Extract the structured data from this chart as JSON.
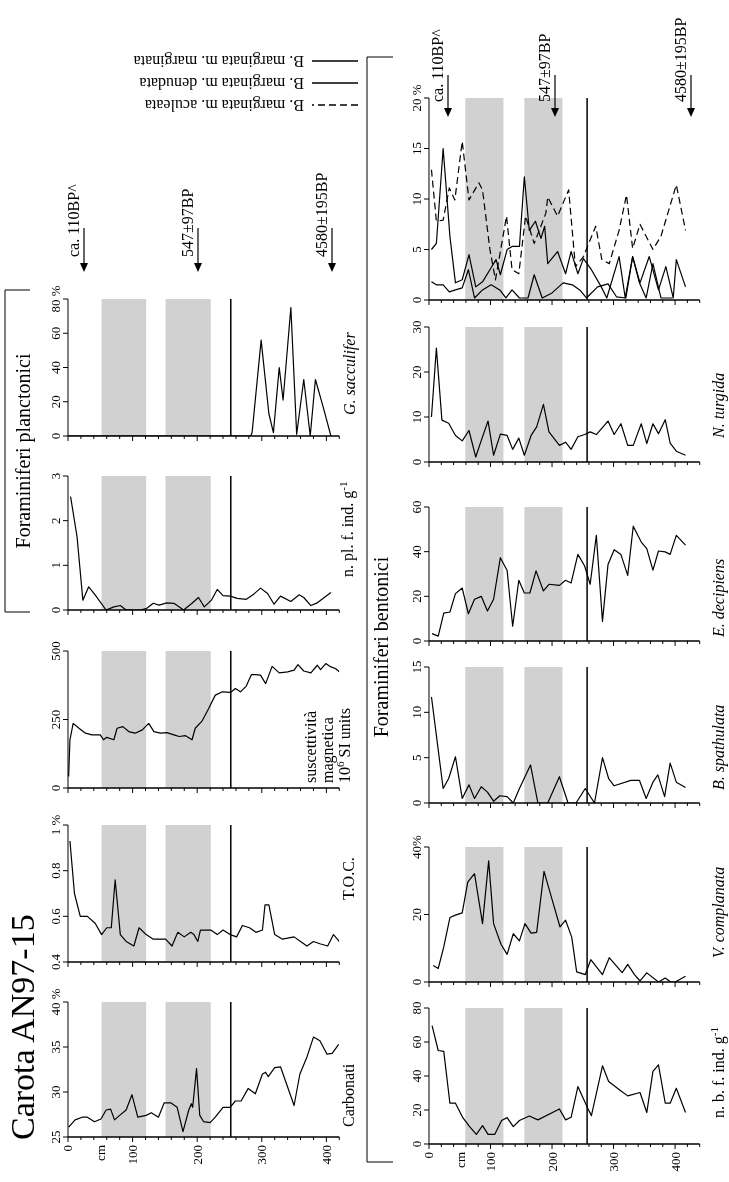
{
  "chart_data": [
    {
      "type": "line",
      "title": "Carota AN97-15",
      "ylabel": "Carbonati",
      "annotations": [
        "cm"
      ],
      "color": "#000000",
      "xlim": [
        0,
        420
      ],
      "xticks": [
        0,
        {
          "value": 20,
          "label": null
        },
        {
          "value": 40,
          "label": null
        },
        {
          "value": 60,
          "label": null
        },
        {
          "value": 80,
          "label": null
        },
        100,
        {
          "value": 120,
          "label": null
        },
        {
          "value": 140,
          "label": null
        },
        {
          "value": 160,
          "label": null
        },
        {
          "value": 180,
          "label": null
        },
        200,
        {
          "value": 220,
          "label": null
        },
        {
          "value": 240,
          "label": null
        },
        {
          "value": 260,
          "label": null
        },
        {
          "value": 280,
          "label": null
        },
        300,
        {
          "value": 320,
          "label": null
        },
        {
          "value": 340,
          "label": null
        },
        {
          "value": 360,
          "label": null
        },
        {
          "value": 380,
          "label": null
        },
        400,
        {
          "value": 420,
          "label": null
        }
      ],
      "ylim": [
        25,
        40
      ],
      "yticks": [
        25,
        30,
        35,
        {
          "value": 40,
          "label": "40 %"
        }
      ],
      "x": [
        1,
        11,
        22,
        30,
        41,
        51,
        59,
        66,
        72,
        80,
        90,
        99,
        108,
        121,
        129,
        140,
        149,
        159,
        169,
        178,
        187,
        191,
        193,
        199,
        204,
        210,
        220,
        228,
        240,
        251,
        259,
        268,
        279,
        290,
        301,
        306,
        310,
        320,
        329,
        350,
        359,
        370,
        380,
        390,
        401,
        409,
        419
      ],
      "values": [
        26.1,
        26.9,
        27.2,
        27.2,
        26.7,
        27.0,
        28.0,
        28.1,
        26.9,
        27.4,
        28.0,
        29.7,
        27.2,
        27.4,
        27.7,
        27.2,
        28.8,
        28.8,
        28.3,
        25.6,
        28.0,
        28.7,
        28.3,
        32.6,
        27.4,
        26.7,
        26.6,
        27.2,
        28.3,
        28.3,
        29.0,
        29.0,
        30.4,
        29.8,
        32.0,
        32.2,
        31.7,
        32.7,
        32.8,
        28.5,
        32.0,
        33.9,
        36.1,
        35.7,
        34.2,
        34.3,
        35.3
      ],
      "bands": [
        {
          "axis": "x",
          "from": 52,
          "to": 121,
          "color": "#d1d1d1"
        },
        {
          "axis": "x",
          "from": 151,
          "to": 221,
          "color": "#d1d1d1"
        }
      ],
      "ref_lines": [
        {
          "axis": "x",
          "value": 252,
          "color": "#000000"
        }
      ]
    },
    {
      "type": "line",
      "ylabel": "T.O.C.",
      "color": "#000000",
      "xlim": [
        0,
        420
      ],
      "xticks": [
        0,
        {
          "value": 20,
          "label": null
        },
        {
          "value": 40,
          "label": null
        },
        {
          "value": 60,
          "label": null
        },
        {
          "value": 80,
          "label": null
        },
        100,
        {
          "value": 120,
          "label": null
        },
        {
          "value": 140,
          "label": null
        },
        {
          "value": 160,
          "label": null
        },
        {
          "value": 180,
          "label": null
        },
        200,
        {
          "value": 220,
          "label": null
        },
        {
          "value": 240,
          "label": null
        },
        {
          "value": 260,
          "label": null
        },
        {
          "value": 280,
          "label": null
        },
        300,
        {
          "value": 320,
          "label": null
        },
        {
          "value": 340,
          "label": null
        },
        {
          "value": 360,
          "label": null
        },
        {
          "value": 380,
          "label": null
        },
        400,
        {
          "value": 420,
          "label": null
        }
      ],
      "ylim": [
        0.4,
        1
      ],
      "yticks": [
        0.4,
        0.6,
        0.8,
        {
          "value": 1,
          "label": "1 %"
        }
      ],
      "tick_labels": "y",
      "x": [
        3,
        10,
        19,
        30,
        42,
        52,
        60,
        67,
        73,
        81,
        90,
        102,
        110,
        121,
        132,
        142,
        151,
        161,
        170,
        180,
        190,
        195,
        201,
        205,
        213,
        221,
        231,
        240,
        251,
        261,
        270,
        281,
        291,
        301,
        305,
        311,
        320,
        332,
        350,
        360,
        370,
        380,
        390,
        402,
        411,
        420
      ],
      "values": [
        0.93,
        0.7,
        0.6,
        0.6,
        0.57,
        0.52,
        0.55,
        0.55,
        0.76,
        0.52,
        0.49,
        0.47,
        0.55,
        0.52,
        0.5,
        0.5,
        0.5,
        0.47,
        0.53,
        0.51,
        0.53,
        0.52,
        0.49,
        0.54,
        0.54,
        0.54,
        0.52,
        0.54,
        0.52,
        0.51,
        0.56,
        0.55,
        0.53,
        0.54,
        0.65,
        0.65,
        0.52,
        0.5,
        0.51,
        0.49,
        0.47,
        0.49,
        0.48,
        0.47,
        0.52,
        0.49
      ],
      "bands": [
        {
          "axis": "x",
          "from": 52,
          "to": 121,
          "color": "#d1d1d1"
        },
        {
          "axis": "x",
          "from": 151,
          "to": 221,
          "color": "#d1d1d1"
        }
      ],
      "ref_lines": [
        {
          "axis": "x",
          "value": 252,
          "color": "#000000"
        }
      ]
    },
    {
      "type": "line",
      "ylabel": "suscettività\nmagnetica\n10$^{6}$ SI units",
      "color": "#000000",
      "xlim": [
        0,
        420
      ],
      "xticks": [
        0,
        {
          "value": 20,
          "label": null
        },
        {
          "value": 40,
          "label": null
        },
        {
          "value": 60,
          "label": null
        },
        {
          "value": 80,
          "label": null
        },
        100,
        {
          "value": 120,
          "label": null
        },
        {
          "value": 140,
          "label": null
        },
        {
          "value": 160,
          "label": null
        },
        {
          "value": 180,
          "label": null
        },
        200,
        {
          "value": 220,
          "label": null
        },
        {
          "value": 240,
          "label": null
        },
        {
          "value": 260,
          "label": null
        },
        {
          "value": 280,
          "label": null
        },
        300,
        {
          "value": 320,
          "label": null
        },
        {
          "value": 340,
          "label": null
        },
        {
          "value": 360,
          "label": null
        },
        {
          "value": 380,
          "label": null
        },
        400,
        {
          "value": 420,
          "label": null
        }
      ],
      "ylim": [
        0,
        500
      ],
      "yticks": [
        0,
        250,
        500
      ],
      "tick_labels": "y",
      "x": [
        1,
        3,
        8,
        17,
        27,
        37,
        50,
        55,
        60,
        71,
        76,
        85,
        94,
        104,
        115,
        125,
        133,
        143,
        153,
        164,
        172,
        182,
        192,
        197,
        208,
        218,
        228,
        239,
        252,
        259,
        267,
        276,
        284,
        290,
        298,
        306,
        316,
        327,
        340,
        350,
        356,
        365,
        376,
        386,
        391,
        399,
        407,
        414,
        420
      ],
      "values": [
        42,
        176,
        236,
        218,
        200,
        194,
        194,
        176,
        185,
        176,
        218,
        224,
        206,
        200,
        212,
        236,
        206,
        200,
        202,
        194,
        188,
        191,
        176,
        218,
        246,
        291,
        339,
        351,
        349,
        363,
        351,
        372,
        414,
        414,
        412,
        381,
        444,
        420,
        424,
        430,
        450,
        427,
        420,
        448,
        432,
        454,
        442,
        436,
        424
      ],
      "bands": [
        {
          "axis": "x",
          "from": 52,
          "to": 121,
          "color": "#d1d1d1"
        },
        {
          "axis": "x",
          "from": 151,
          "to": 221,
          "color": "#d1d1d1"
        }
      ],
      "ref_lines": [
        {
          "axis": "x",
          "value": 252,
          "color": "#000000"
        }
      ]
    },
    {
      "type": "line",
      "ylabel": "n. pl. f. ind. g$^{-1}$",
      "annotations": [
        "Foraminiferi planctonici"
      ],
      "color": "#000000",
      "xlim": [
        0,
        420
      ],
      "xticks": [
        0,
        {
          "value": 20,
          "label": null
        },
        {
          "value": 40,
          "label": null
        },
        {
          "value": 60,
          "label": null
        },
        {
          "value": 80,
          "label": null
        },
        100,
        {
          "value": 120,
          "label": null
        },
        {
          "value": 140,
          "label": null
        },
        {
          "value": 160,
          "label": null
        },
        {
          "value": 180,
          "label": null
        },
        200,
        {
          "value": 220,
          "label": null
        },
        {
          "value": 240,
          "label": null
        },
        {
          "value": 260,
          "label": null
        },
        {
          "value": 280,
          "label": null
        },
        300,
        {
          "value": 320,
          "label": null
        },
        {
          "value": 340,
          "label": null
        },
        {
          "value": 360,
          "label": null
        },
        {
          "value": 380,
          "label": null
        },
        400,
        {
          "value": 420,
          "label": null
        }
      ],
      "ylim": [
        0,
        3
      ],
      "yticks": [
        0,
        1,
        2,
        3
      ],
      "tick_labels": "y",
      "x": [
        4,
        14,
        23,
        32,
        42,
        59,
        71,
        81,
        89,
        99,
        112,
        122,
        132,
        141,
        153,
        164,
        179,
        192,
        202,
        211,
        222,
        231,
        240,
        251,
        262,
        276,
        288,
        298,
        309,
        319,
        329,
        345,
        358,
        365,
        376,
        386,
        407
      ],
      "values": [
        2.54,
        1.64,
        0.22,
        0.52,
        0.34,
        0,
        0.07,
        0.1,
        0.01,
        0,
        0,
        0.04,
        0.15,
        0.11,
        0.16,
        0.15,
        0,
        0.15,
        0.28,
        0.07,
        0.22,
        0.46,
        0.32,
        0.31,
        0.26,
        0.24,
        0.36,
        0.49,
        0.37,
        0.13,
        0.31,
        0.19,
        0.34,
        0.28,
        0.1,
        0.16,
        0.39
      ],
      "bands": [
        {
          "axis": "x",
          "from": 52,
          "to": 121,
          "color": "#d1d1d1"
        },
        {
          "axis": "x",
          "from": 151,
          "to": 221,
          "color": "#d1d1d1"
        }
      ],
      "ref_lines": [
        {
          "axis": "x",
          "value": 252,
          "color": "#000000"
        }
      ]
    },
    {
      "type": "line",
      "ylabel": "G. sacculifer",
      "annotations": [
        "ca. 110BP^",
        "547±97BP",
        "4580±195BP"
      ],
      "color": "#000000",
      "xlim": [
        0,
        420
      ],
      "xticks": [
        0,
        {
          "value": 20,
          "label": null
        },
        {
          "value": 40,
          "label": null
        },
        {
          "value": 60,
          "label": null
        },
        {
          "value": 80,
          "label": null
        },
        100,
        {
          "value": 120,
          "label": null
        },
        {
          "value": 140,
          "label": null
        },
        {
          "value": 160,
          "label": null
        },
        {
          "value": 180,
          "label": null
        },
        200,
        {
          "value": 220,
          "label": null
        },
        {
          "value": 240,
          "label": null
        },
        {
          "value": 260,
          "label": null
        },
        {
          "value": 280,
          "label": null
        },
        300,
        {
          "value": 320,
          "label": null
        },
        {
          "value": 340,
          "label": null
        },
        {
          "value": 360,
          "label": null
        },
        {
          "value": 380,
          "label": null
        },
        400,
        {
          "value": 420,
          "label": null
        }
      ],
      "ylim": [
        0,
        80
      ],
      "yticks": [
        0,
        20,
        40,
        60,
        {
          "value": 80,
          "label": "80 %"
        }
      ],
      "tick_labels": "y",
      "x": [
        0,
        283,
        285,
        299,
        311,
        318,
        327,
        333,
        345,
        354,
        365,
        375,
        383,
        395,
        407
      ],
      "values": [
        0,
        0,
        2,
        56,
        13,
        2,
        40,
        21,
        75,
        1,
        33,
        0,
        33,
        17,
        0
      ],
      "bands": [
        {
          "axis": "x",
          "from": 52,
          "to": 121,
          "color": "#d1d1d1"
        },
        {
          "axis": "x",
          "from": 151,
          "to": 221,
          "color": "#d1d1d1"
        }
      ],
      "ref_lines": [
        {
          "axis": "x",
          "value": 252,
          "color": "#000000"
        }
      ]
    },
    {
      "type": "line",
      "ylabel": "n. b. f. ind. g$^{-1}$",
      "annotations": [
        "cm"
      ],
      "color": "#000000",
      "xlim": [
        0,
        440
      ],
      "xticks": [
        0,
        {
          "value": 20,
          "label": null
        },
        {
          "value": 40,
          "label": null
        },
        {
          "value": 60,
          "label": null
        },
        {
          "value": 80,
          "label": null
        },
        100,
        {
          "value": 120,
          "label": null
        },
        {
          "value": 140,
          "label": null
        },
        {
          "value": 160,
          "label": null
        },
        {
          "value": 180,
          "label": null
        },
        200,
        {
          "value": 220,
          "label": null
        },
        {
          "value": 240,
          "label": null
        },
        {
          "value": 260,
          "label": null
        },
        {
          "value": 280,
          "label": null
        },
        300,
        {
          "value": 320,
          "label": null
        },
        {
          "value": 340,
          "label": null
        },
        {
          "value": 360,
          "label": null
        },
        {
          "value": 380,
          "label": null
        },
        400,
        {
          "value": 420,
          "label": null
        },
        {
          "value": 440,
          "label": null
        }
      ],
      "ylim": [
        0,
        80
      ],
      "yticks": [
        0,
        20,
        40,
        60,
        80
      ],
      "x": [
        5,
        15,
        24,
        34,
        43,
        55,
        66,
        77,
        87,
        96,
        107,
        118,
        127,
        137,
        147,
        163,
        177,
        212,
        222,
        231,
        242,
        258,
        264,
        282,
        292,
        310,
        323,
        343,
        354,
        364,
        373,
        384,
        392,
        402,
        417
      ],
      "values": [
        69.6,
        55.0,
        54.5,
        24,
        24,
        15.5,
        10.2,
        5.7,
        10.8,
        5.7,
        5.7,
        13.8,
        15.5,
        10.2,
        13.8,
        16.5,
        14.2,
        20.6,
        14.2,
        15.7,
        33.8,
        21,
        16.7,
        46,
        36.8,
        31.8,
        28.3,
        30.3,
        18.5,
        42.7,
        46.6,
        24,
        24,
        32.8,
        18.5
      ],
      "bands": [
        {
          "axis": "x",
          "from": 59,
          "to": 121,
          "color": "#d1d1d1"
        },
        {
          "axis": "x",
          "from": 155,
          "to": 217,
          "color": "#d1d1d1"
        }
      ],
      "ref_lines": [
        {
          "axis": "x",
          "value": 257,
          "color": "#000000"
        }
      ]
    },
    {
      "type": "line",
      "ylabel": "V. complanata",
      "color": "#000000",
      "xlim": [
        0,
        440
      ],
      "xticks": [
        0,
        {
          "value": 20,
          "label": null
        },
        {
          "value": 40,
          "label": null
        },
        {
          "value": 60,
          "label": null
        },
        {
          "value": 80,
          "label": null
        },
        100,
        {
          "value": 120,
          "label": null
        },
        {
          "value": 140,
          "label": null
        },
        {
          "value": 160,
          "label": null
        },
        {
          "value": 180,
          "label": null
        },
        200,
        {
          "value": 220,
          "label": null
        },
        {
          "value": 240,
          "label": null
        },
        {
          "value": 260,
          "label": null
        },
        {
          "value": 280,
          "label": null
        },
        300,
        {
          "value": 320,
          "label": null
        },
        {
          "value": 340,
          "label": null
        },
        {
          "value": 360,
          "label": null
        },
        {
          "value": 380,
          "label": null
        },
        400,
        {
          "value": 420,
          "label": null
        },
        {
          "value": 440,
          "label": null
        }
      ],
      "ylim": [
        0,
        40
      ],
      "yticks": [
        0,
        20,
        {
          "value": 40,
          "label": "40%"
        }
      ],
      "tick_labels": "y",
      "x": [
        7,
        15,
        24,
        34,
        43,
        54,
        63,
        74,
        87,
        97,
        105,
        117,
        127,
        137,
        147,
        156,
        166,
        175,
        187,
        200,
        213,
        222,
        232,
        240,
        254,
        263,
        282,
        293,
        314,
        323,
        334,
        343,
        354,
        373,
        384,
        393,
        400,
        417
      ],
      "values": [
        4.9,
        4.0,
        10.4,
        19.1,
        19.8,
        20.5,
        29.6,
        32.1,
        17.3,
        35.9,
        17.3,
        11.2,
        8.2,
        14.3,
        12.2,
        17.3,
        14.5,
        14.7,
        32.8,
        24.5,
        16.3,
        18.3,
        13.3,
        3.0,
        2.2,
        6.6,
        2.2,
        7.2,
        2.8,
        5.2,
        2.2,
        0.3,
        2.7,
        0,
        1.2,
        0,
        0,
        1.7
      ],
      "bands": [
        {
          "axis": "x",
          "from": 59,
          "to": 121,
          "color": "#d1d1d1"
        },
        {
          "axis": "x",
          "from": 155,
          "to": 217,
          "color": "#d1d1d1"
        }
      ],
      "ref_lines": [
        {
          "axis": "x",
          "value": 257,
          "color": "#000000"
        }
      ]
    },
    {
      "type": "line",
      "ylabel": "B. spathulata",
      "annotations": [
        "Foraminiferi bentonici"
      ],
      "color": "#000000",
      "xlim": [
        0,
        440
      ],
      "xticks": [
        0,
        {
          "value": 20,
          "label": null
        },
        {
          "value": 40,
          "label": null
        },
        {
          "value": 60,
          "label": null
        },
        {
          "value": 80,
          "label": null
        },
        100,
        {
          "value": 120,
          "label": null
        },
        {
          "value": 140,
          "label": null
        },
        {
          "value": 160,
          "label": null
        },
        {
          "value": 180,
          "label": null
        },
        200,
        {
          "value": 220,
          "label": null
        },
        {
          "value": 240,
          "label": null
        },
        {
          "value": 260,
          "label": null
        },
        {
          "value": 280,
          "label": null
        },
        300,
        {
          "value": 320,
          "label": null
        },
        {
          "value": 340,
          "label": null
        },
        {
          "value": 360,
          "label": null
        },
        {
          "value": 380,
          "label": null
        },
        400,
        {
          "value": 420,
          "label": null
        },
        {
          "value": 440,
          "label": null
        }
      ],
      "ylim": [
        0,
        15
      ],
      "yticks": [
        0,
        5,
        10,
        15
      ],
      "tick_labels": "y",
      "x": [
        4,
        23,
        32,
        43,
        54,
        65,
        74,
        85,
        95,
        105,
        115,
        127,
        137,
        147,
        165,
        177,
        193,
        212,
        226,
        239,
        254,
        269,
        282,
        292,
        301,
        328,
        342,
        353,
        364,
        372,
        383,
        392,
        402,
        417
      ],
      "values": [
        11.7,
        1.6,
        2.7,
        5.1,
        0.5,
        2.0,
        0.5,
        1.8,
        1.2,
        0.2,
        0.8,
        0.7,
        0,
        1.6,
        4.2,
        0,
        0,
        2.9,
        0,
        0,
        1.6,
        0,
        5.0,
        2.7,
        1.9,
        2.5,
        2.5,
        0.5,
        2.3,
        3.1,
        0.7,
        4.4,
        2.3,
        1.7
      ],
      "bands": [
        {
          "axis": "x",
          "from": 59,
          "to": 121,
          "color": "#d1d1d1"
        },
        {
          "axis": "x",
          "from": 155,
          "to": 217,
          "color": "#d1d1d1"
        }
      ],
      "ref_lines": [
        {
          "axis": "x",
          "value": 257,
          "color": "#000000"
        }
      ]
    },
    {
      "type": "line",
      "ylabel": "E. decipiens",
      "color": "#000000",
      "xlim": [
        0,
        440
      ],
      "xticks": [
        0,
        {
          "value": 20,
          "label": null
        },
        {
          "value": 40,
          "label": null
        },
        {
          "value": 60,
          "label": null
        },
        {
          "value": 80,
          "label": null
        },
        100,
        {
          "value": 120,
          "label": null
        },
        {
          "value": 140,
          "label": null
        },
        {
          "value": 160,
          "label": null
        },
        {
          "value": 180,
          "label": null
        },
        200,
        {
          "value": 220,
          "label": null
        },
        {
          "value": 240,
          "label": null
        },
        {
          "value": 260,
          "label": null
        },
        {
          "value": 280,
          "label": null
        },
        300,
        {
          "value": 320,
          "label": null
        },
        {
          "value": 340,
          "label": null
        },
        {
          "value": 360,
          "label": null
        },
        {
          "value": 380,
          "label": null
        },
        400,
        {
          "value": 420,
          "label": null
        },
        {
          "value": 440,
          "label": null
        }
      ],
      "ylim": [
        0,
        60
      ],
      "yticks": [
        0,
        20,
        40,
        60
      ],
      "tick_labels": "y",
      "x": [
        5,
        15,
        24,
        34,
        43,
        54,
        64,
        74,
        85,
        95,
        105,
        116,
        127,
        136,
        146,
        155,
        164,
        174,
        186,
        195,
        212,
        222,
        231,
        242,
        253,
        262,
        272,
        282,
        291,
        301,
        312,
        323,
        332,
        345,
        354,
        364,
        373,
        384,
        392,
        402,
        417
      ],
      "values": [
        3.3,
        2.2,
        12.5,
        13.0,
        21.2,
        23.7,
        12.2,
        18.7,
        20.0,
        13.4,
        18.7,
        37.3,
        31.6,
        6.6,
        27.2,
        21.5,
        21.5,
        31.4,
        22.4,
        25.4,
        24.9,
        27.2,
        26.0,
        38.8,
        33.6,
        25.4,
        47.3,
        8.8,
        34.3,
        40.9,
        38.7,
        29.4,
        51.4,
        44.3,
        41.4,
        31.7,
        40.3,
        39.9,
        38.8,
        47.3,
        42.9
      ],
      "bands": [
        {
          "axis": "x",
          "from": 59,
          "to": 121,
          "color": "#d1d1d1"
        },
        {
          "axis": "x",
          "from": 155,
          "to": 217,
          "color": "#d1d1d1"
        }
      ],
      "ref_lines": [
        {
          "axis": "x",
          "value": 257,
          "color": "#000000"
        }
      ]
    },
    {
      "type": "line",
      "ylabel": "N. turgida",
      "color": "#000000",
      "xlim": [
        0,
        440
      ],
      "xticks": [
        0,
        {
          "value": 20,
          "label": null
        },
        {
          "value": 40,
          "label": null
        },
        {
          "value": 60,
          "label": null
        },
        {
          "value": 80,
          "label": null
        },
        100,
        {
          "value": 120,
          "label": null
        },
        {
          "value": 140,
          "label": null
        },
        {
          "value": 160,
          "label": null
        },
        {
          "value": 180,
          "label": null
        },
        200,
        {
          "value": 220,
          "label": null
        },
        {
          "value": 240,
          "label": null
        },
        {
          "value": 260,
          "label": null
        },
        {
          "value": 280,
          "label": null
        },
        300,
        {
          "value": 320,
          "label": null
        },
        {
          "value": 340,
          "label": null
        },
        {
          "value": 360,
          "label": null
        },
        {
          "value": 380,
          "label": null
        },
        400,
        {
          "value": 420,
          "label": null
        },
        {
          "value": 440,
          "label": null
        }
      ],
      "ylim": [
        0,
        30
      ],
      "yticks": [
        0,
        10,
        20,
        30
      ],
      "tick_labels": "y",
      "x": [
        4,
        12,
        21,
        32,
        43,
        54,
        65,
        76,
        85,
        96,
        105,
        116,
        127,
        136,
        146,
        155,
        166,
        175,
        186,
        195,
        212,
        222,
        231,
        242,
        253,
        262,
        272,
        291,
        301,
        312,
        323,
        332,
        345,
        354,
        364,
        373,
        384,
        392,
        402,
        417
      ],
      "values": [
        10.0,
        25.3,
        9.3,
        8.6,
        5.9,
        4.7,
        7.0,
        1.1,
        4.8,
        9.1,
        1.5,
        6.2,
        5.9,
        2.8,
        5.3,
        1.5,
        5.9,
        7.8,
        12.8,
        6.7,
        3.7,
        4.4,
        2.8,
        5.6,
        6.1,
        6.7,
        6.1,
        9.1,
        6.1,
        8.5,
        3.7,
        3.7,
        8.5,
        4.1,
        8.5,
        6.3,
        9.4,
        4.2,
        2.4,
        1.5
      ],
      "bands": [
        {
          "axis": "x",
          "from": 59,
          "to": 121,
          "color": "#d1d1d1"
        },
        {
          "axis": "x",
          "from": 155,
          "to": 217,
          "color": "#d1d1d1"
        }
      ],
      "ref_lines": [
        {
          "axis": "x",
          "value": 257,
          "color": "#000000"
        }
      ]
    },
    {
      "type": "line",
      "legend": "top",
      "annotations": [
        "ca. 110BP^",
        "547±97BP",
        "4580±195BP"
      ],
      "xlim": [
        0,
        440
      ],
      "xticks": [
        0,
        {
          "value": 20,
          "label": null
        },
        {
          "value": 40,
          "label": null
        },
        {
          "value": 60,
          "label": null
        },
        {
          "value": 80,
          "label": null
        },
        100,
        {
          "value": 120,
          "label": null
        },
        {
          "value": 140,
          "label": null
        },
        {
          "value": 160,
          "label": null
        },
        {
          "value": 180,
          "label": null
        },
        200,
        {
          "value": 220,
          "label": null
        },
        {
          "value": 240,
          "label": null
        },
        {
          "value": 260,
          "label": null
        },
        {
          "value": 280,
          "label": null
        },
        300,
        {
          "value": 320,
          "label": null
        },
        {
          "value": 340,
          "label": null
        },
        {
          "value": 360,
          "label": null
        },
        {
          "value": 380,
          "label": null
        },
        400,
        {
          "value": 420,
          "label": null
        },
        {
          "value": 440,
          "label": null
        }
      ],
      "ylim": [
        0,
        20
      ],
      "yticks": [
        0,
        5,
        10,
        15,
        {
          "value": 20,
          "label": "20 %"
        }
      ],
      "tick_labels": "y",
      "series": [
        {
          "name": "B. marginata m. aculeata",
          "color": "#000000",
          "line_style": "dashed",
          "x": [
            4,
            12,
            23,
            33,
            42,
            54,
            65,
            81,
            87,
            99,
            108,
            126,
            135,
            146,
            157,
            171,
            190,
            193,
            209,
            227,
            238,
            251,
            271,
            281,
            293,
            309,
            321,
            331,
            343,
            364,
            377,
            402,
            417
          ],
          "values": [
            12.9,
            7.8,
            7.9,
            11.1,
            9.9,
            15.7,
            9.9,
            11.6,
            10.9,
            5.0,
            2.0,
            8.3,
            3.0,
            2.6,
            8.3,
            5.6,
            8.6,
            10.2,
            8.3,
            10.9,
            3.3,
            4.3,
            7.3,
            4.0,
            3.6,
            6.9,
            10.4,
            5.1,
            7.5,
            5.0,
            6.3,
            11.4,
            6.9
          ]
        },
        {
          "name": "B. marginata m. denudata",
          "color": "#000000",
          "line_style": "solid",
          "x": [
            4,
            12,
            23,
            33,
            43,
            54,
            64,
            74,
            87,
            101,
            115,
            125,
            135,
            147,
            161,
            171,
            184,
            200,
            218,
            233,
            245,
            256,
            274,
            291,
            305,
            320,
            331,
            342,
            353,
            364,
            377,
            396
          ],
          "values": [
            1.8,
            1.5,
            1.5,
            0.8,
            1.0,
            1.2,
            3.0,
            0.2,
            1.0,
            1.5,
            1.0,
            0.2,
            1.0,
            0.2,
            0.2,
            2.5,
            0.2,
            0.7,
            1.7,
            1.5,
            1.0,
            0.2,
            1.3,
            1.6,
            0.3,
            0.2,
            4.3,
            1.7,
            0.2,
            3.6,
            0.2,
            0.2
          ]
        },
        {
          "name": "B. marginata m. marginata",
          "color": "#000000",
          "line_style": "solid",
          "x": [
            4,
            12,
            23,
            34,
            43,
            54,
            65,
            76,
            87,
            99,
            109,
            116,
            127,
            135,
            147,
            155,
            163,
            173,
            182,
            188,
            193,
            209,
            222,
            231,
            242,
            251,
            264,
            280,
            289,
            309,
            319,
            331,
            343,
            358,
            373,
            385,
            397,
            402,
            417
          ],
          "values": [
            5.0,
            5.6,
            15.0,
            6.3,
            1.7,
            2.0,
            4.5,
            1.3,
            1.8,
            3.0,
            4.0,
            2.5,
            5.0,
            5.3,
            5.3,
            12.2,
            6.9,
            7.8,
            6.1,
            7.3,
            3.6,
            4.8,
            2.6,
            4.8,
            2.6,
            4.1,
            3.0,
            1.3,
            0.2,
            4.3,
            0.2,
            4.3,
            1.7,
            4.3,
            1.0,
            3.3,
            0.2,
            4.0,
            1.3
          ]
        }
      ],
      "bands": [
        {
          "axis": "x",
          "from": 59,
          "to": 121,
          "color": "#d1d1d1"
        },
        {
          "axis": "x",
          "from": 155,
          "to": 217,
          "color": "#d1d1d1"
        }
      ],
      "ref_lines": [
        {
          "axis": "x",
          "value": 257,
          "color": "#000000"
        }
      ]
    }
  ]
}
